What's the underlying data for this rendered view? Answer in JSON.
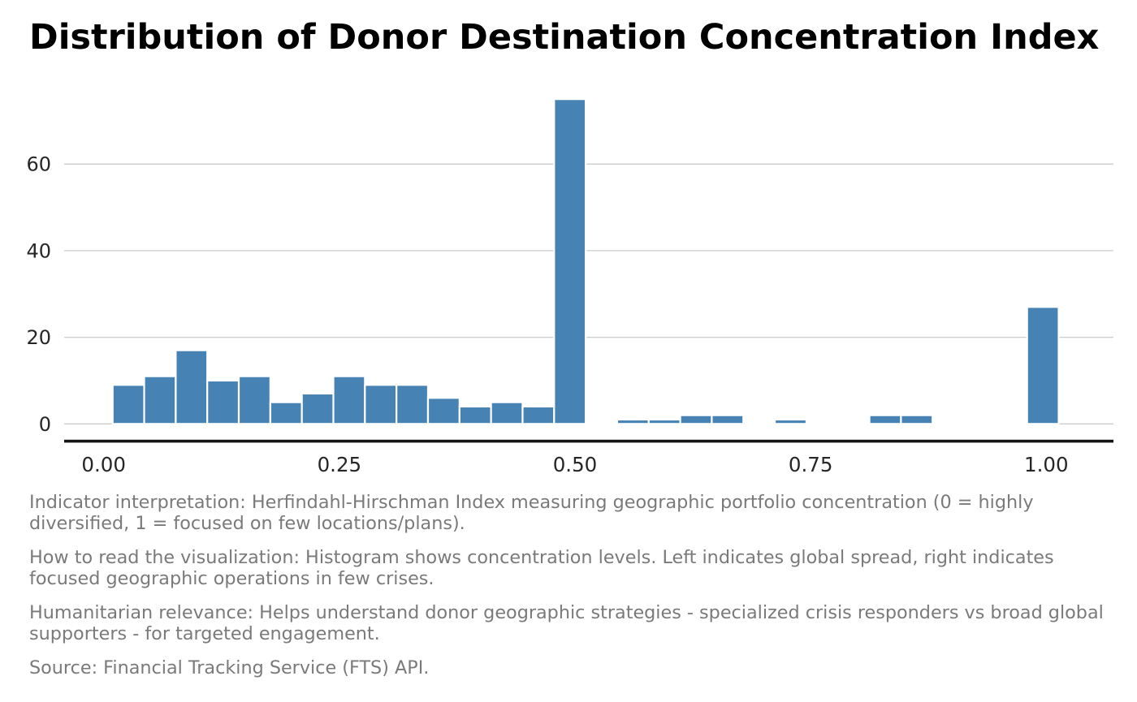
{
  "title": "Distribution of Donor Destination Concentration Index",
  "chart_data": {
    "type": "bar",
    "subtype": "histogram",
    "title": "Distribution of Donor Destination Concentration Index",
    "xlabel": "",
    "ylabel": "",
    "bin_start": 0.0095,
    "bin_width": 0.033454,
    "counts": [
      9,
      11,
      17,
      10,
      11,
      5,
      7,
      11,
      9,
      9,
      6,
      4,
      5,
      4,
      75,
      0,
      1,
      1,
      2,
      2,
      0,
      1,
      0,
      0,
      2,
      2,
      0,
      0,
      0,
      27
    ],
    "x_ticks": {
      "values": [
        0,
        0.25,
        0.5,
        0.75,
        1.0
      ],
      "labels": [
        "0.00",
        "0.25",
        "0.50",
        "0.75",
        "1.00"
      ]
    },
    "y_ticks": {
      "values": [
        0,
        20,
        40,
        60
      ],
      "labels": [
        "0",
        "20",
        "40",
        "60"
      ]
    },
    "xlim": [
      -0.042,
      1.0714
    ],
    "ylim": [
      0,
      78.75
    ],
    "grid": "horizontal-only",
    "legend": "none",
    "colors": {
      "bar_fill": "#4682B4",
      "bar_edge": "#FFFFFF",
      "grid_line": "#CCCCCC",
      "axis_spine": "#141414",
      "tick_label": "#262626",
      "title_text": "#000000",
      "note_text": "#7A7A7A",
      "background": "#FFFFFF"
    }
  },
  "notes": {
    "indicator_interpretation": "Indicator interpretation: Herfindahl-Hirschman Index measuring geographic portfolio concentration (0 = highly diversified, 1 = focused on few locations/plans).",
    "how_to_read": "How to read the visualization: Histogram shows concentration levels. Left indicates global spread, right indicates focused geographic operations in few crises.",
    "humanitarian_relevance": "Humanitarian relevance: Helps understand donor geographic strategies - specialized crisis responders vs broad global supporters - for targeted engagement.",
    "source": "Source: Financial Tracking Service (FTS) API."
  }
}
